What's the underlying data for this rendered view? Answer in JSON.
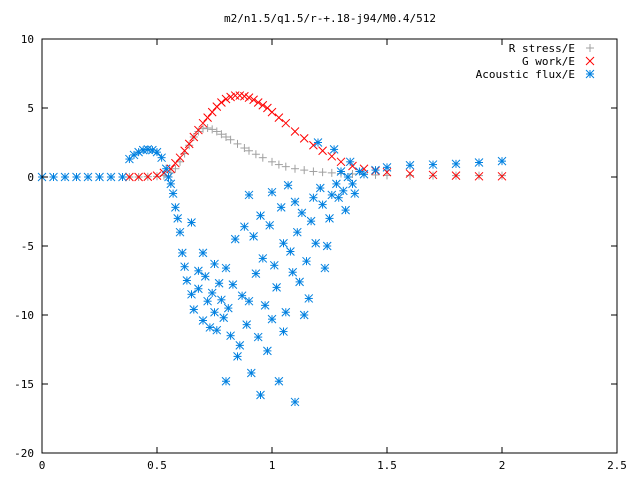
{
  "chart_data": {
    "type": "scatter",
    "title": "m2/n1.5/q1.5/r-+.18-j94/M0.4/512",
    "xlabel": "",
    "ylabel": "",
    "xlim": [
      0,
      2.5
    ],
    "ylim": [
      -20,
      10
    ],
    "x_ticks": [
      0,
      0.5,
      1,
      1.5,
      2,
      2.5
    ],
    "x_tick_labels": [
      "0",
      "0.5",
      "1",
      "1.5",
      "2",
      "2.5"
    ],
    "y_ticks": [
      -20,
      -15,
      -10,
      -5,
      0,
      5,
      10
    ],
    "y_tick_labels": [
      "-20",
      "-15",
      "-10",
      "-5",
      "0",
      "5",
      "10"
    ],
    "grid": false,
    "legend_position": "top-right",
    "series": [
      {
        "name": "R stress/E",
        "marker": "plus",
        "color": "#a0a0a0",
        "x": [
          0.38,
          0.42,
          0.46,
          0.5,
          0.53,
          0.56,
          0.58,
          0.6,
          0.62,
          0.64,
          0.66,
          0.68,
          0.7,
          0.72,
          0.74,
          0.76,
          0.78,
          0.8,
          0.82,
          0.85,
          0.88,
          0.9,
          0.93,
          0.96,
          1.0,
          1.03,
          1.06,
          1.1,
          1.14,
          1.18,
          1.22,
          1.26,
          1.3,
          1.35,
          1.4,
          1.45,
          1.5,
          1.6,
          1.7,
          1.8,
          1.9,
          2.0
        ],
        "y": [
          0.0,
          0.0,
          0.02,
          0.05,
          0.1,
          0.3,
          0.6,
          1.1,
          1.7,
          2.3,
          2.9,
          3.3,
          3.5,
          3.55,
          3.45,
          3.3,
          3.1,
          2.9,
          2.7,
          2.4,
          2.1,
          1.9,
          1.65,
          1.4,
          1.1,
          0.9,
          0.75,
          0.6,
          0.5,
          0.4,
          0.35,
          0.3,
          0.25,
          0.22,
          0.2,
          0.15,
          0.12,
          0.1,
          0.1,
          0.1,
          0.1,
          0.1
        ]
      },
      {
        "name": "G work/E",
        "marker": "cross",
        "color": "#ff0000",
        "x": [
          0.38,
          0.42,
          0.46,
          0.5,
          0.53,
          0.56,
          0.58,
          0.6,
          0.62,
          0.64,
          0.66,
          0.68,
          0.7,
          0.72,
          0.74,
          0.76,
          0.78,
          0.8,
          0.82,
          0.84,
          0.86,
          0.88,
          0.9,
          0.92,
          0.94,
          0.96,
          0.98,
          1.0,
          1.03,
          1.06,
          1.1,
          1.14,
          1.18,
          1.22,
          1.26,
          1.3,
          1.35,
          1.4,
          1.45,
          1.5,
          1.6,
          1.7,
          1.8,
          1.9,
          2.0
        ],
        "y": [
          0.0,
          0.0,
          0.02,
          0.1,
          0.3,
          0.6,
          1.0,
          1.4,
          1.9,
          2.4,
          2.9,
          3.4,
          3.9,
          4.3,
          4.7,
          5.1,
          5.4,
          5.65,
          5.8,
          5.9,
          5.9,
          5.85,
          5.75,
          5.6,
          5.4,
          5.2,
          5.0,
          4.7,
          4.3,
          3.9,
          3.3,
          2.8,
          2.3,
          1.9,
          1.5,
          1.1,
          0.8,
          0.6,
          0.45,
          0.35,
          0.25,
          0.15,
          0.1,
          0.05,
          0.05
        ]
      },
      {
        "name": "Acoustic flux/E",
        "marker": "star",
        "color": "#0080e0",
        "x": [
          0.0,
          0.05,
          0.1,
          0.15,
          0.2,
          0.25,
          0.3,
          0.35,
          0.38,
          0.4,
          0.42,
          0.44,
          0.46,
          0.48,
          0.5,
          0.52,
          0.54,
          0.55,
          0.56,
          0.57,
          0.58,
          0.59,
          0.6,
          0.61,
          0.62,
          0.63,
          0.65,
          0.65,
          0.66,
          0.68,
          0.68,
          0.7,
          0.7,
          0.71,
          0.72,
          0.73,
          0.74,
          0.75,
          0.75,
          0.76,
          0.77,
          0.78,
          0.79,
          0.8,
          0.8,
          0.81,
          0.82,
          0.83,
          0.84,
          0.85,
          0.86,
          0.87,
          0.88,
          0.89,
          0.9,
          0.9,
          0.91,
          0.92,
          0.93,
          0.94,
          0.95,
          0.95,
          0.96,
          0.97,
          0.98,
          0.99,
          1.0,
          1.0,
          1.01,
          1.02,
          1.03,
          1.04,
          1.05,
          1.05,
          1.06,
          1.07,
          1.08,
          1.09,
          1.1,
          1.1,
          1.11,
          1.12,
          1.13,
          1.14,
          1.15,
          1.16,
          1.17,
          1.18,
          1.19,
          1.2,
          1.21,
          1.22,
          1.23,
          1.24,
          1.25,
          1.26,
          1.27,
          1.28,
          1.29,
          1.3,
          1.31,
          1.32,
          1.33,
          1.34,
          1.35,
          1.36,
          1.38,
          1.4,
          1.45,
          1.5,
          1.6,
          1.7,
          1.8,
          1.9,
          2.0
        ],
        "y": [
          0.0,
          0.0,
          0.0,
          0.0,
          0.0,
          0.0,
          0.0,
          0.0,
          1.3,
          1.6,
          1.8,
          1.95,
          2.0,
          1.95,
          1.8,
          1.4,
          0.6,
          0.0,
          -0.5,
          -1.2,
          -2.2,
          -3.0,
          -4.0,
          -5.5,
          -6.5,
          -7.5,
          -3.3,
          -8.5,
          -9.6,
          -6.8,
          -8.1,
          -10.4,
          -5.5,
          -7.2,
          -9.0,
          -10.9,
          -8.4,
          -6.3,
          -9.8,
          -11.1,
          -7.7,
          -8.9,
          -10.2,
          -6.6,
          -14.8,
          -9.5,
          -11.5,
          -7.8,
          -4.5,
          -13.0,
          -12.2,
          -8.6,
          -3.6,
          -10.7,
          -1.3,
          -9.0,
          -14.2,
          -4.3,
          -7.0,
          -11.6,
          -2.8,
          -15.8,
          -5.9,
          -9.3,
          -12.6,
          -3.5,
          -1.1,
          -10.3,
          -6.4,
          -8.0,
          -14.8,
          -2.2,
          -4.8,
          -11.2,
          -9.8,
          -0.6,
          -5.4,
          -6.9,
          -1.8,
          -16.3,
          -4.0,
          -7.6,
          -2.6,
          -10.0,
          -6.1,
          -8.8,
          -3.2,
          -1.5,
          -4.8,
          2.5,
          -0.8,
          -2.0,
          -6.6,
          -5.0,
          -3.0,
          -1.3,
          2.0,
          -0.5,
          -1.5,
          0.4,
          -1.0,
          -2.4,
          0.0,
          1.1,
          -0.5,
          -1.2,
          0.4,
          0.2,
          0.5,
          0.7,
          0.85,
          0.9,
          0.95,
          1.05,
          1.15
        ]
      }
    ]
  }
}
